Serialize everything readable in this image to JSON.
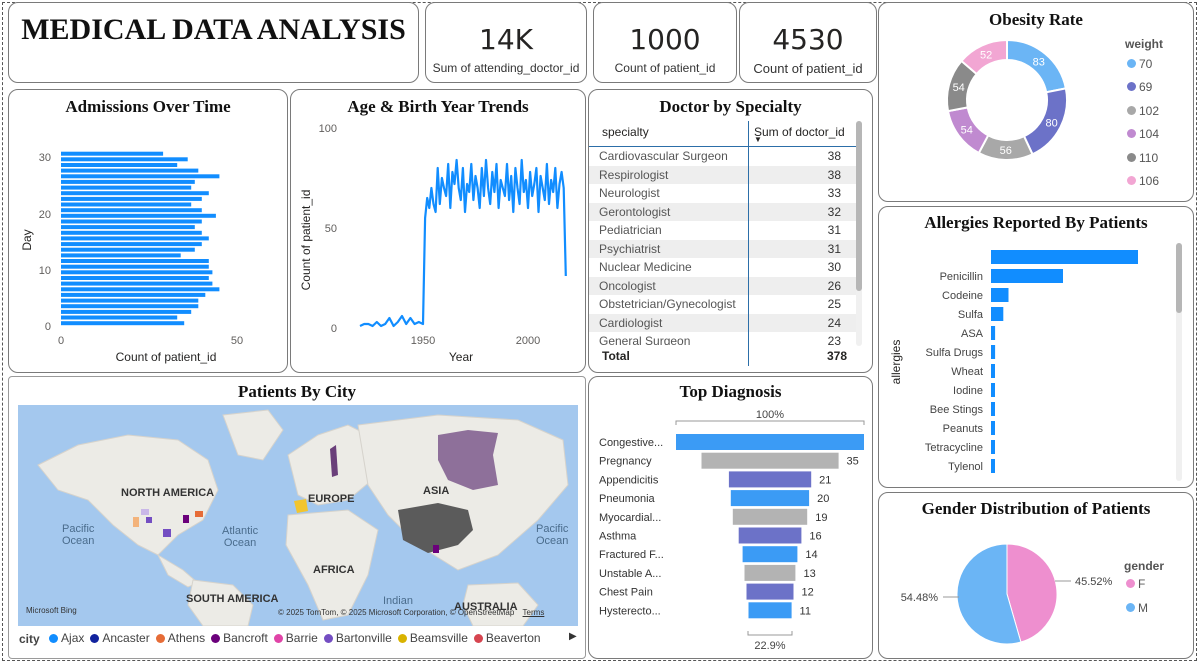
{
  "dashboard": {
    "title": "MEDICAL DATA ANALYSIS"
  },
  "kpis": [
    {
      "value": "14K",
      "label": "Sum of attending_doctor_id"
    },
    {
      "value": "1000",
      "label": "Count of patient_id"
    },
    {
      "value": "4530",
      "label": "Count of patient_id"
    }
  ],
  "admissions": {
    "title": "Admissions Over Time",
    "y_title": "Day",
    "x_title": "Count of patient_id",
    "y_ticks": [
      "0",
      "10",
      "20",
      "30"
    ],
    "x_ticks": [
      "0",
      "50"
    ]
  },
  "age_trends": {
    "title": "Age & Birth Year Trends",
    "y_title": "Count of patient_id",
    "x_title": "Year",
    "y_ticks": [
      "0",
      "50",
      "100"
    ],
    "x_ticks": [
      "1950",
      "2000"
    ]
  },
  "doctor_table": {
    "title": "Doctor by Specialty",
    "col_specialty": "specialty",
    "col_sum": "Sum of doctor_id",
    "rows": [
      {
        "specialty": "Cardiovascular Surgeon",
        "sum": "38"
      },
      {
        "specialty": "Respirologist",
        "sum": "38"
      },
      {
        "specialty": "Neurologist",
        "sum": "33"
      },
      {
        "specialty": "Gerontologist",
        "sum": "32"
      },
      {
        "specialty": "Pediatrician",
        "sum": "31"
      },
      {
        "specialty": "Psychiatrist",
        "sum": "31"
      },
      {
        "specialty": "Nuclear Medicine",
        "sum": "30"
      },
      {
        "specialty": "Oncologist",
        "sum": "26"
      },
      {
        "specialty": "Obstetrician/Gynecologist",
        "sum": "25"
      },
      {
        "specialty": "Cardiologist",
        "sum": "24"
      },
      {
        "specialty": "General Surgeon",
        "sum": "23"
      }
    ],
    "total_label": "Total",
    "total_value": "378"
  },
  "obesity": {
    "title": "Obesity Rate",
    "legend_title": "weight",
    "legend": [
      {
        "label": "70",
        "color": "#6bb5f5"
      },
      {
        "label": "69",
        "color": "#6c72c8"
      },
      {
        "label": "102",
        "color": "#a8a8a8"
      },
      {
        "label": "104",
        "color": "#c08ad0"
      },
      {
        "label": "110",
        "color": "#8a8a8a"
      },
      {
        "label": "106",
        "color": "#f2a6d3"
      }
    ]
  },
  "allergies": {
    "title": "Allergies Reported By Patients",
    "y_title": "allergies"
  },
  "map": {
    "title": "Patients By City",
    "labels": {
      "north_america": "NORTH AMERICA",
      "europe": "EUROPE",
      "asia": "ASIA",
      "africa": "AFRICA",
      "south_america": "SOUTH AMERICA",
      "australia": "AUSTRALIA",
      "pacific_left": "Pacific\nOcean",
      "atlantic": "Atlantic\nOcean",
      "pacific_right": "Pacific\nOcean",
      "indian": "Indian"
    },
    "attribution": "© 2025 TomTom, © 2025 Microsoft Corporation, © OpenStreetMap",
    "terms": "Terms",
    "bing": "Microsoft Bing",
    "legend_title": "city",
    "legend": [
      {
        "label": "Ajax",
        "color": "#118dff"
      },
      {
        "label": "Ancaster",
        "color": "#12239e"
      },
      {
        "label": "Athens",
        "color": "#e66c37"
      },
      {
        "label": "Bancroft",
        "color": "#6b007b"
      },
      {
        "label": "Barrie",
        "color": "#e044a7"
      },
      {
        "label": "Bartonville",
        "color": "#744ec2"
      },
      {
        "label": "Beamsville",
        "color": "#d9b300"
      },
      {
        "label": "Beaverton",
        "color": "#d64550"
      }
    ]
  },
  "diagnosis": {
    "title": "Top Diagnosis",
    "top_pct": "100%",
    "bottom_pct": "22.9%"
  },
  "gender": {
    "title": "Gender Distribution of Patients",
    "legend_title": "gender",
    "legend": [
      {
        "label": "F",
        "color": "#ee8fcf"
      },
      {
        "label": "M",
        "color": "#6bb5f5"
      }
    ]
  },
  "chart_data": [
    {
      "type": "bar",
      "orientation": "horizontal",
      "title": "Admissions Over Time",
      "xlabel": "Count of patient_id",
      "ylabel": "Day",
      "xlim": [
        0,
        60
      ],
      "ylim": [
        0,
        31
      ],
      "categories": [
        1,
        2,
        3,
        4,
        5,
        6,
        7,
        8,
        9,
        10,
        11,
        12,
        13,
        14,
        15,
        16,
        17,
        18,
        19,
        20,
        21,
        22,
        23,
        24,
        25,
        26,
        27,
        28,
        29,
        30,
        31
      ],
      "values": [
        35,
        33,
        37,
        39,
        39,
        41,
        45,
        43,
        42,
        43,
        42,
        42,
        34,
        38,
        40,
        42,
        40,
        38,
        40,
        44,
        40,
        37,
        40,
        42,
        37,
        38,
        45,
        39,
        33,
        36,
        29
      ]
    },
    {
      "type": "line",
      "title": "Age & Birth Year Trends",
      "xlabel": "Year",
      "ylabel": "Count of patient_id",
      "xlim": [
        1918,
        2020
      ],
      "ylim": [
        0,
        100
      ],
      "x": [
        1920,
        1922,
        1924,
        1926,
        1928,
        1930,
        1932,
        1934,
        1936,
        1938,
        1940,
        1942,
        1944,
        1946,
        1948,
        1950,
        1951,
        1952,
        1953,
        1954,
        1955,
        1956,
        1957,
        1958,
        1959,
        1960,
        1961,
        1962,
        1963,
        1964,
        1965,
        1966,
        1967,
        1968,
        1969,
        1970,
        1971,
        1972,
        1973,
        1974,
        1975,
        1976,
        1977,
        1978,
        1979,
        1980,
        1981,
        1982,
        1983,
        1984,
        1985,
        1986,
        1987,
        1988,
        1989,
        1990,
        1991,
        1992,
        1993,
        1994,
        1995,
        1996,
        1997,
        1998,
        1999,
        2000,
        2001,
        2002,
        2003,
        2004,
        2005,
        2006,
        2007,
        2008,
        2009,
        2010,
        2011,
        2012,
        2013,
        2014,
        2015,
        2016,
        2017,
        2018
      ],
      "y": [
        1,
        2,
        2,
        1,
        3,
        1,
        2,
        5,
        1,
        3,
        6,
        2,
        5,
        2,
        3,
        2,
        55,
        65,
        60,
        70,
        62,
        58,
        80,
        62,
        75,
        70,
        66,
        82,
        60,
        78,
        72,
        84,
        70,
        64,
        80,
        58,
        72,
        68,
        82,
        64,
        76,
        70,
        60,
        80,
        66,
        84,
        70,
        62,
        78,
        68,
        82,
        60,
        74,
        70,
        66,
        82,
        64,
        76,
        58,
        80,
        70,
        62,
        84,
        68,
        74,
        60,
        78,
        66,
        72,
        80,
        58,
        76,
        70,
        64,
        82,
        62,
        74,
        68,
        80,
        60,
        72,
        78,
        70,
        26
      ]
    },
    {
      "type": "pie",
      "title": "Obesity Rate",
      "donut": true,
      "legend_title": "weight",
      "categories": [
        "70",
        "69",
        "102",
        "104",
        "110",
        "106"
      ],
      "values": [
        83,
        80,
        56,
        54,
        54,
        52
      ]
    },
    {
      "type": "bar",
      "orientation": "horizontal",
      "title": "Allergies Reported By Patients",
      "ylabel": "allergies",
      "categories": [
        "",
        "Penicillin",
        "Codeine",
        "Sulfa",
        "ASA",
        "Sulfa Drugs",
        "Wheat",
        "Iodine",
        "Bee Stings",
        "Peanuts",
        "Tetracycline",
        "Tylenol"
      ],
      "values": [
        143,
        70,
        17,
        12,
        4,
        4,
        3,
        3,
        3,
        3,
        3,
        3
      ]
    },
    {
      "type": "bar",
      "orientation": "funnel",
      "title": "Top Diagnosis",
      "categories": [
        "Congestive...",
        "Pregnancy",
        "Appendicitis",
        "Pneumonia",
        "Myocardial...",
        "Asthma",
        "Fractured F...",
        "Unstable A...",
        "Chest Pain",
        "Hysterecto..."
      ],
      "values": [
        48,
        35,
        21,
        20,
        19,
        16,
        14,
        13,
        12,
        11
      ],
      "annotations": [
        "100%",
        "22.9%"
      ]
    },
    {
      "type": "pie",
      "title": "Gender Distribution of Patients",
      "legend_title": "gender",
      "categories": [
        "F",
        "M"
      ],
      "values": [
        45.52,
        54.48
      ],
      "data_labels": [
        "45.52%",
        "54.48%"
      ]
    }
  ]
}
